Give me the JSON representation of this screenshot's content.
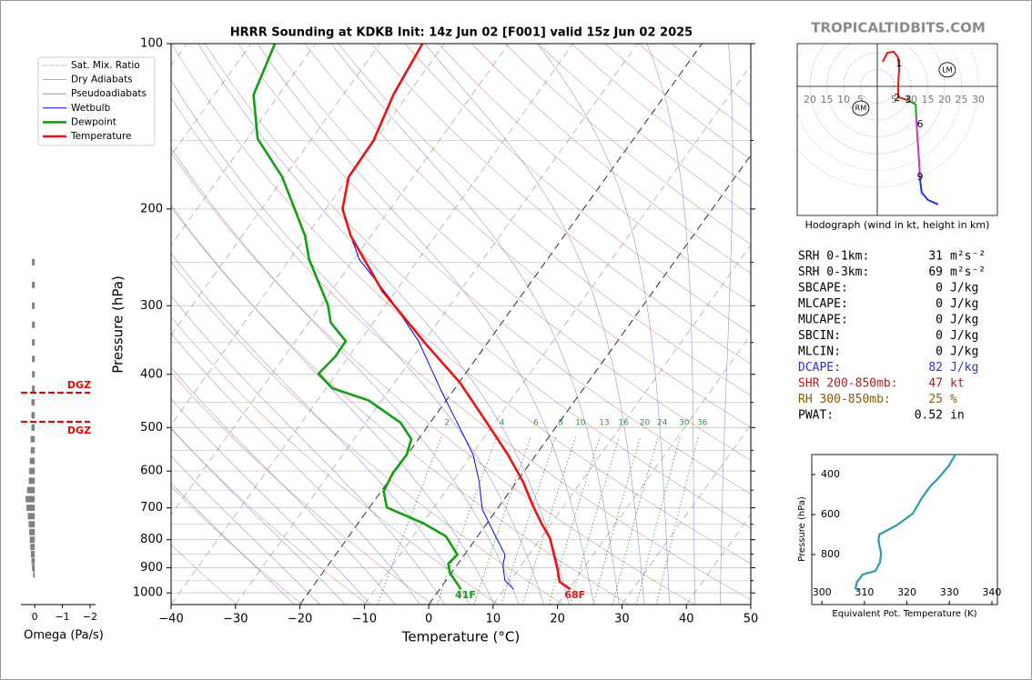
{
  "site": "TROPICALTIDBITS.COM",
  "chart_data": [
    {
      "type": "skewt",
      "title": "HRRR Sounding at KDKB Init: 14z Jun 02 [F001] valid 15z Jun 02 2025",
      "x_label": "Temperature (°C)",
      "y_label": "Pressure (hPa)",
      "xlim": [
        -40,
        50
      ],
      "ylim": [
        1050,
        100
      ],
      "xticks": [
        {
          "value": -40,
          "label": "−40"
        },
        {
          "value": -30,
          "label": "−30"
        },
        {
          "value": -20,
          "label": "−20"
        },
        {
          "value": -10,
          "label": "−10"
        },
        0,
        10,
        20,
        30,
        40,
        50
      ],
      "yticks": [
        100,
        200,
        300,
        400,
        500,
        600,
        700,
        800,
        900,
        1000
      ],
      "yticks_minor": [
        150,
        250,
        350,
        450,
        550,
        650,
        750,
        850,
        950
      ],
      "highlighted_isotherms": [
        -20,
        0
      ],
      "reference_lines": [
        {
          "name": "Sat. Mix. Ratio",
          "color": "#2f9a2f",
          "values": [
            2,
            4,
            6,
            8,
            10,
            13,
            16,
            20,
            24,
            30,
            36
          ]
        },
        {
          "name": "Dry Adiabats",
          "color": "#d07878"
        },
        {
          "name": "Pseudoadiabats",
          "color": "#7878d0"
        }
      ],
      "series": [
        {
          "name": "Wetbulb",
          "color": "#0000ee",
          "pressure": [
            985,
            948,
            892,
            852,
            789,
            704,
            628,
            560,
            500,
            429,
            348,
            293,
            247,
            228
          ],
          "values": [
            11.5,
            9.1,
            7.2,
            6.3,
            2.8,
            -2.3,
            -5.8,
            -9.8,
            -14.9,
            -21.8,
            -30.9,
            -39.7,
            -49.2,
            -52.4
          ]
        },
        {
          "name": "Dewpoint",
          "color": "#10a010",
          "surface_label": "41F",
          "pressure": [
            985,
            920,
            885,
            852,
            789,
            746,
            699,
            653,
            605,
            560,
            525,
            490,
            446,
            424,
            399,
            371,
            348,
            322,
            299,
            247,
            224,
            175,
            149,
            124,
            100
          ],
          "values": [
            3.3,
            -0.2,
            -1.5,
            -1.1,
            -4.9,
            -10,
            -17.3,
            -19.6,
            -20.2,
            -20.1,
            -21.1,
            -24.6,
            -32.1,
            -39,
            -42.8,
            -42.1,
            -42.2,
            -46.6,
            -49,
            -57,
            -60.2,
            -70.3,
            -78.4,
            -83.9,
            -86.3
          ]
        },
        {
          "name": "Temperature",
          "color": "#ee1111",
          "surface_label": "68F",
          "pressure": [
            985,
            955,
            912,
            852,
            796,
            746,
            691,
            628,
            560,
            490,
            413,
            355,
            282,
            224,
            200,
            175,
            150,
            124,
            100
          ],
          "values": [
            20.3,
            17.8,
            16.3,
            13.9,
            11.5,
            8.4,
            5.0,
            1.0,
            -4.4,
            -11.2,
            -20,
            -29,
            -42.1,
            -53.1,
            -57.4,
            -60,
            -60.2,
            -62.2,
            -63.4
          ]
        }
      ]
    },
    {
      "type": "hodograph",
      "caption": "Hodograph (wind in kt, height in km)",
      "xlim": [
        -23.8,
        35.7
      ],
      "ylim": [
        -38.4,
        12.7
      ],
      "xticks": [
        {
          "value": -20,
          "label": "20"
        },
        {
          "value": -15,
          "label": "15"
        },
        {
          "value": -10,
          "label": "10"
        },
        {
          "value": -5,
          "label": "5"
        },
        5,
        10,
        15,
        20,
        25,
        30
      ],
      "series": [
        {
          "color": "#ee1111",
          "x": [
            1.6,
            3.0,
            4.9,
            6.2,
            6.5,
            6.2,
            6.2,
            8.9
          ],
          "values": [
            7.3,
            10.0,
            10.3,
            8.6,
            5.4,
            0,
            -3.2,
            -4.1
          ]
        },
        {
          "color": "#22a022",
          "x": [
            8.9,
            11.4,
            11.6
          ],
          "values": [
            -4.1,
            -5.4,
            -9.5
          ]
        },
        {
          "color": "#cc33cc",
          "x": [
            11.6,
            11.9,
            12.4,
            12.7
          ],
          "values": [
            -9.5,
            -14.9,
            -21.6,
            -27.8
          ]
        },
        {
          "color": "#2233ee",
          "x": [
            12.7,
            13.2,
            15.1,
            18.1
          ],
          "values": [
            -27.8,
            -31.6,
            -33.8,
            -35.1
          ]
        }
      ],
      "annotations": [
        {
          "text": "1",
          "x": 6.5,
          "y": 6.8
        },
        {
          "text": "2",
          "x": 5.9,
          "y": -3.5
        },
        {
          "text": "3",
          "x": 9.2,
          "y": -4.1
        },
        {
          "text": "6",
          "x": 12.7,
          "y": -11.4
        },
        {
          "text": "9",
          "x": 12.7,
          "y": -27.0
        }
      ],
      "storm_motion": [
        {
          "text": "RM",
          "x": -4.9,
          "y": -6.5
        },
        {
          "text": "LM",
          "x": 20.8,
          "y": 4.9
        }
      ]
    },
    {
      "type": "profile",
      "x_label": "Equivalent Pot. Temperature (K)",
      "y_label": "Pressure (hPa)",
      "xlim": [
        297.6,
        341.3
      ],
      "ylim": [
        1050,
        300
      ],
      "xticks": [
        300,
        310,
        320,
        330,
        340
      ],
      "yticks": [
        400,
        600,
        800
      ],
      "series": [
        {
          "color": "#2a9bb0",
          "pressure": [
            300,
            355,
            414,
            459,
            518,
            595,
            655,
            700,
            732,
            791,
            836,
            882,
            900,
            936,
            968,
            986
          ],
          "values": [
            331.4,
            329.9,
            327.6,
            325.5,
            323.5,
            321.4,
            317.5,
            313.5,
            313.3,
            313.9,
            313.7,
            312.6,
            309.6,
            308.3,
            307.9,
            309.0
          ]
        }
      ]
    },
    {
      "type": "omega",
      "x_label": "Omega (Pa/s)",
      "xlim": [
        0.5,
        -2.2
      ],
      "ylim": [
        1050,
        100
      ],
      "xticks": [
        0,
        {
          "value": -1,
          "label": "−1"
        },
        {
          "value": -2,
          "label": "−2"
        }
      ],
      "color": "#808080",
      "pressure": [
        250,
        275,
        300,
        325,
        350,
        375,
        400,
        425,
        450,
        475,
        500,
        525,
        550,
        575,
        600,
        625,
        650,
        675,
        700,
        725,
        750,
        775,
        800,
        825,
        850,
        875,
        900,
        925
      ],
      "values": [
        0.1,
        0.1,
        0.1,
        0.1,
        0.1,
        0.1,
        0.1,
        0.1,
        0.12,
        0.12,
        0.12,
        0.15,
        0.15,
        0.18,
        0.2,
        0.22,
        0.28,
        0.33,
        0.3,
        0.25,
        0.22,
        0.2,
        0.18,
        0.16,
        0.14,
        0.12,
        0.1,
        0.06
      ],
      "dgz": [
        {
          "text": "DGZ",
          "pressure": 432,
          "color": "#ee0000"
        },
        {
          "text": "DGZ",
          "pressure": 488,
          "color": "#ee0000"
        }
      ]
    }
  ],
  "indices": [
    {
      "label": "SRH 0-1km:",
      "value": 31,
      "unit": "m²s⁻²",
      "color": "#000000"
    },
    {
      "label": "SRH 0-3km:",
      "value": 69,
      "unit": "m²s⁻²",
      "color": "#000000"
    },
    {
      "label": "SBCAPE:",
      "value": 0,
      "unit": "J/kg",
      "color": "#000000"
    },
    {
      "label": "MLCAPE:",
      "value": 0,
      "unit": "J/kg",
      "color": "#000000"
    },
    {
      "label": "MUCAPE:",
      "value": 0,
      "unit": "J/kg",
      "color": "#000000"
    },
    {
      "label": "SBCIN:",
      "value": 0,
      "unit": "J/kg",
      "color": "#000000"
    },
    {
      "label": "MLCIN:",
      "value": 0,
      "unit": "J/kg",
      "color": "#000000"
    },
    {
      "label": "DCAPE:",
      "value": 82,
      "unit": "J/kg",
      "color": "#2e2ed0"
    },
    {
      "label": "SHR 200-850mb:",
      "value": 47,
      "unit": "kt",
      "color": "#a32020"
    },
    {
      "label": "RH 300-850mb:",
      "value": 25,
      "unit": "%",
      "color": "#8a5a00"
    },
    {
      "label": "PWAT:",
      "value": 0.52,
      "unit": "in",
      "color": "#000000"
    }
  ]
}
